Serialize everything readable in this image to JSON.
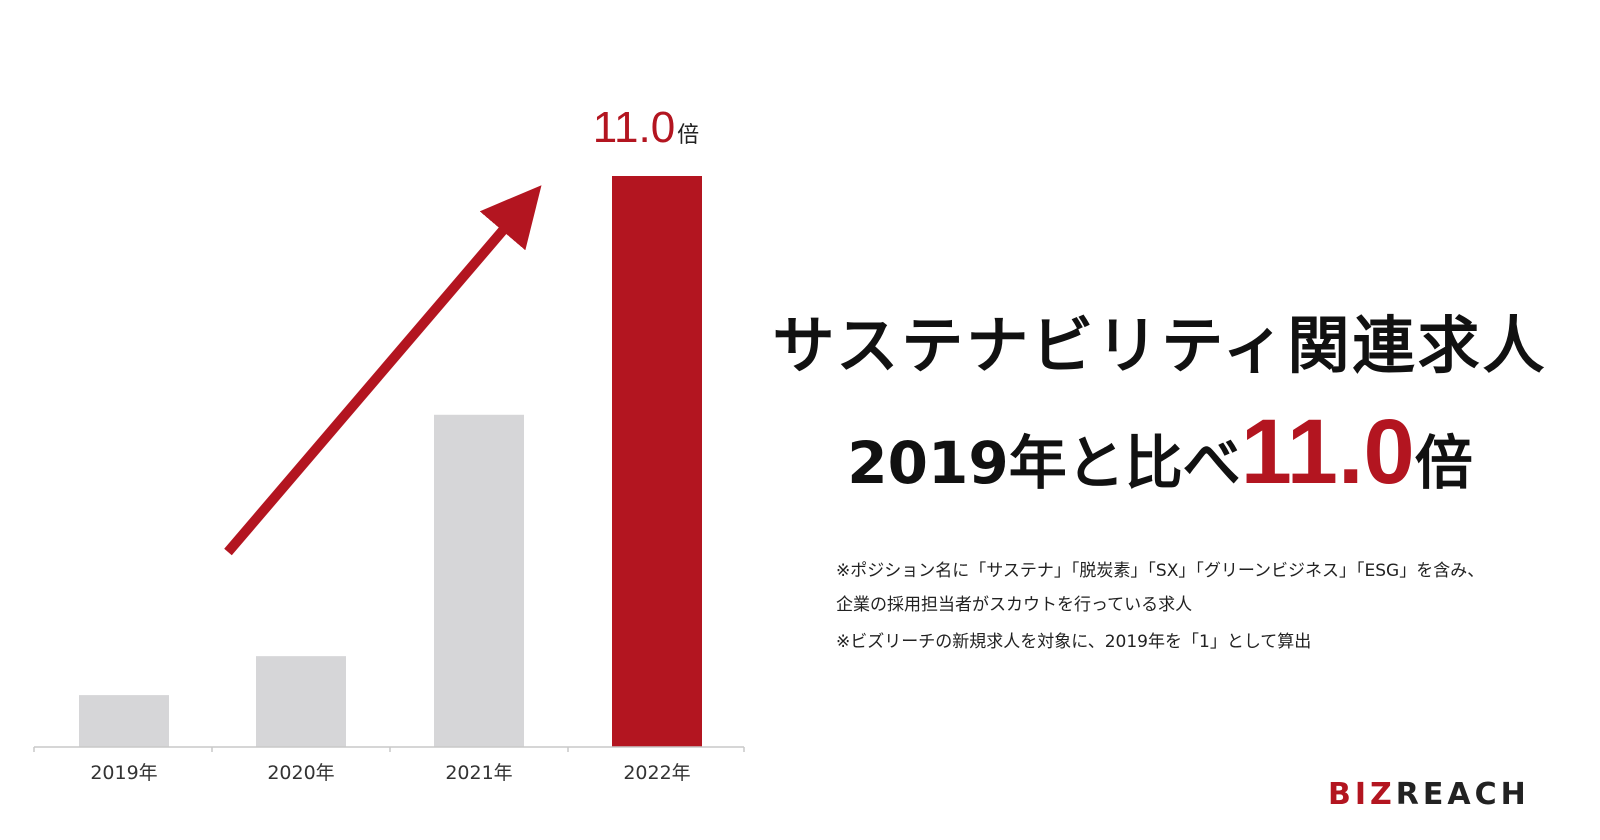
{
  "chart_data": {
    "type": "bar",
    "categories": [
      "2019年",
      "2020年",
      "2021年",
      "2022年"
    ],
    "values": [
      1.0,
      1.75,
      6.4,
      11.0
    ],
    "highlight_index": 3,
    "top_label": {
      "value": "11.0",
      "unit": "倍"
    },
    "ylim": [
      0,
      11.0
    ],
    "grid": false,
    "colors": {
      "normal": "#d6d6d8",
      "highlight": "#b31520",
      "arrow": "#b31520",
      "axis": "#c8c8c8"
    }
  },
  "headline": {
    "line1": "サステナビリティ関連求人",
    "line2_prefix": "2019年と比べ",
    "line2_value": "11.0",
    "line2_suffix": "倍"
  },
  "notes": {
    "line1": "※ポジション名に「サステナ」「脱炭素」「SX」「グリーンビジネス」「ESG」を含み、",
    "line2": "企業の採用担当者がスカウトを行っている求人",
    "line3": "※ビズリーチの新規求人を対象に、2019年を「1」として算出"
  },
  "logo": {
    "accent": "BIZ",
    "rest": "REACH"
  }
}
